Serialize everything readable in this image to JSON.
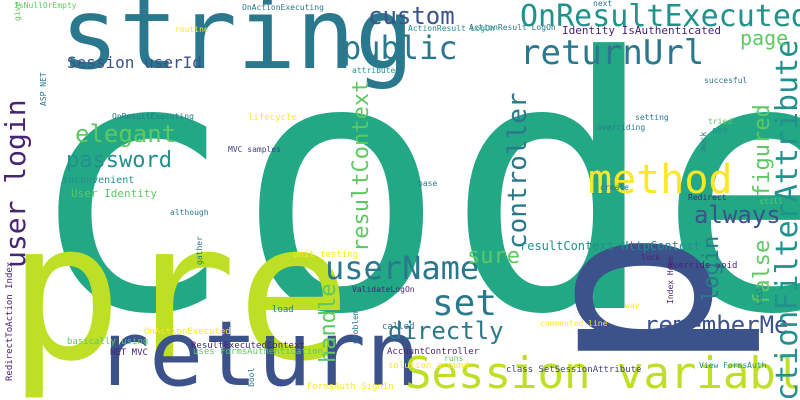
{
  "palette": {
    "green": "#22a884",
    "lime": "#bddf26",
    "teal": "#2a788e",
    "navy": "#3b528b",
    "purple": "#482475",
    "aqua": "#21918c",
    "mint": "#5ec962",
    "yellow": "#fde725",
    "indigo": "#414487"
  },
  "words": [
    {
      "text": "code",
      "color": "green"
    },
    {
      "text": "pre",
      "color": "lime"
    },
    {
      "text": "p",
      "color": "navy"
    },
    {
      "text": "string",
      "color": "teal"
    },
    {
      "text": "return",
      "color": "navy"
    },
    {
      "text": "Session variable",
      "color": "lime"
    },
    {
      "text": "method",
      "color": "yellow"
    },
    {
      "text": "OnResultExecuted",
      "color": "aqua"
    },
    {
      "text": "returnUrl",
      "color": "teal"
    },
    {
      "text": "public",
      "color": "teal"
    },
    {
      "text": "userName",
      "color": "teal"
    },
    {
      "text": "set",
      "color": "teal"
    },
    {
      "text": "custom",
      "color": "navy"
    },
    {
      "text": "user login",
      "color": "purple"
    },
    {
      "text": "password",
      "color": "aqua"
    },
    {
      "text": "elegant",
      "color": "mint"
    },
    {
      "text": "always",
      "color": "navy"
    },
    {
      "text": "rememberMe",
      "color": "navy"
    },
    {
      "text": "ActionFilterAttribute",
      "color": "aqua"
    },
    {
      "text": "controller",
      "color": "teal"
    },
    {
      "text": "resultContext",
      "color": "mint"
    },
    {
      "text": "handle",
      "color": "mint"
    },
    {
      "text": "directly",
      "color": "teal"
    },
    {
      "text": "login",
      "color": "teal"
    },
    {
      "text": "false",
      "color": "mint"
    },
    {
      "text": "figured",
      "color": "mint"
    },
    {
      "text": "page",
      "color": "mint"
    },
    {
      "text": "sure",
      "color": "mint"
    },
    {
      "text": "Session userId",
      "color": "navy"
    },
    {
      "text": "Identity IsAuthenticated",
      "color": "purple"
    },
    {
      "text": "resultContext HttpContext",
      "color": "aqua"
    },
    {
      "text": "User Identity",
      "color": "mint"
    },
    {
      "text": "inconvenient",
      "color": "aqua"
    },
    {
      "text": "OnResultExecuting",
      "color": "teal"
    },
    {
      "text": "MVC samples",
      "color": "indigo"
    },
    {
      "text": "lifecycle",
      "color": "yellow"
    },
    {
      "text": "although",
      "color": "teal"
    },
    {
      "text": "unit testing",
      "color": "yellow"
    },
    {
      "text": "ValidateLogOn",
      "color": "purple"
    },
    {
      "text": "load",
      "color": "teal"
    },
    {
      "text": "called",
      "color": "teal"
    },
    {
      "text": "OnActionExecuted",
      "color": "yellow"
    },
    {
      "text": "basically using",
      "color": "mint"
    },
    {
      "text": "NET MVC",
      "color": "purple"
    },
    {
      "text": "ResultExecutedContext",
      "color": "purple"
    },
    {
      "text": "uses FormsAuthentication",
      "color": "mint"
    },
    {
      "text": "AccountController",
      "color": "purple"
    },
    {
      "text": "runs",
      "color": "mint"
    },
    {
      "text": "solution around",
      "color": "yellow"
    },
    {
      "text": "class SetSessionAttribute",
      "color": "indigo"
    },
    {
      "text": "FormsAuth SignIn",
      "color": "yellow"
    },
    {
      "text": "commented line",
      "color": "yellow"
    },
    {
      "text": "way",
      "color": "yellow"
    },
    {
      "text": "View FormsAuth",
      "color": "aqua"
    },
    {
      "text": "Redirect",
      "color": "purple"
    },
    {
      "text": "override void",
      "color": "purple"
    },
    {
      "text": "luck",
      "color": "purple"
    },
    {
      "text": "Index Home",
      "color": "purple"
    },
    {
      "text": "create",
      "color": "teal"
    },
    {
      "text": "base",
      "color": "teal"
    },
    {
      "text": "setting",
      "color": "teal"
    },
    {
      "text": "overriding",
      "color": "teal"
    },
    {
      "text": "tried",
      "color": "mint"
    },
    {
      "text": "see",
      "color": "aqua"
    },
    {
      "text": "mock",
      "color": "teal"
    },
    {
      "text": "succesful",
      "color": "teal"
    },
    {
      "text": "still",
      "color": "mint"
    },
    {
      "text": "last",
      "color": "teal"
    },
    {
      "text": "next",
      "color": "teal"
    },
    {
      "text": "ActionResult LogOn",
      "color": "teal"
    },
    {
      "text": "ActionResult LogOn",
      "color": "aqua"
    },
    {
      "text": "OnActionExecuting",
      "color": "teal"
    },
    {
      "text": "IsNullOrEmpty",
      "color": "mint"
    },
    {
      "text": "routine",
      "color": "yellow"
    },
    {
      "text": "give",
      "color": "mint"
    },
    {
      "text": "ASP NET",
      "color": "teal"
    },
    {
      "text": "attribute",
      "color": "aqua"
    },
    {
      "text": "RedirectToAction Index",
      "color": "purple"
    },
    {
      "text": "gather",
      "color": "teal"
    },
    {
      "text": "bool",
      "color": "teal"
    },
    {
      "text": "problem",
      "color": "teal"
    }
  ]
}
